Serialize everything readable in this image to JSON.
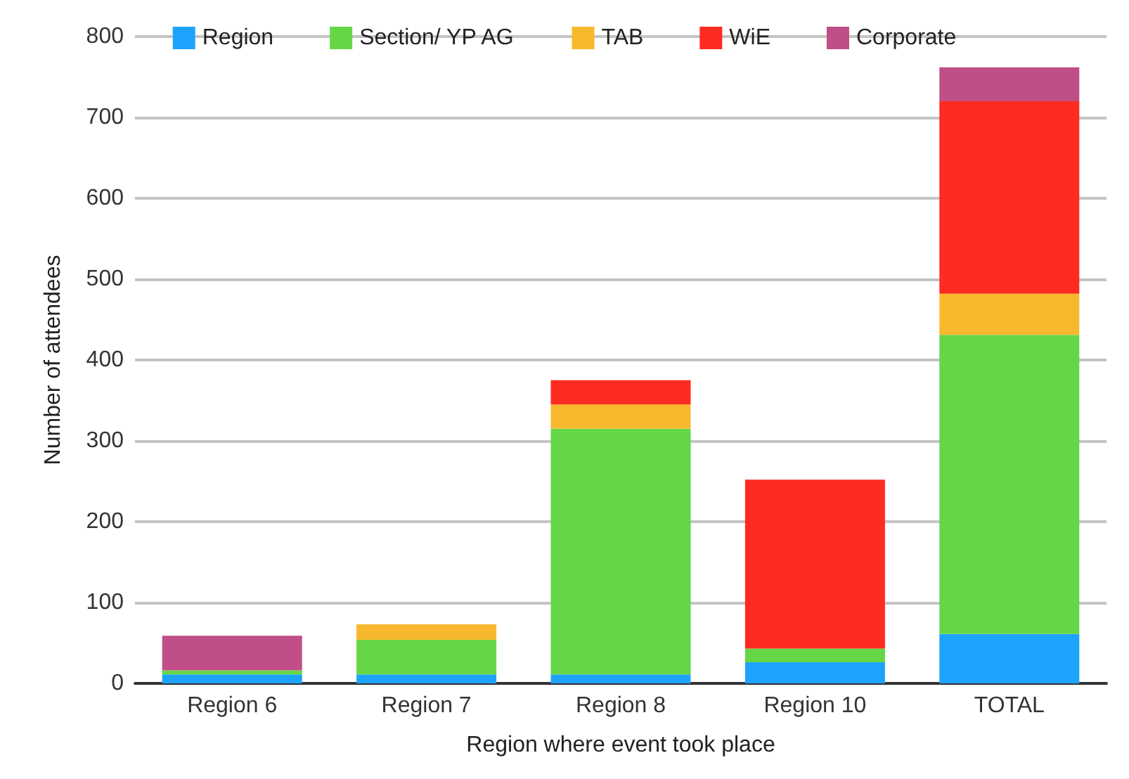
{
  "chart_data": {
    "type": "bar",
    "stacked": true,
    "xlabel": "Region where event took place",
    "ylabel": "Number of attendees",
    "categories": [
      "Region 6",
      "Region 7",
      "Region 8",
      "Region 10",
      "TOTAL"
    ],
    "series": [
      {
        "name": "Region",
        "color": "#1ea3fc",
        "values": [
          11,
          11,
          11,
          26,
          61
        ]
      },
      {
        "name": "Section/ YP AG",
        "color": "#65d746",
        "values": [
          5,
          43,
          304,
          17,
          370
        ]
      },
      {
        "name": "TAB",
        "color": "#f8b82e",
        "values": [
          0,
          19,
          30,
          0,
          51
        ]
      },
      {
        "name": "WiE",
        "color": "#fd2b21",
        "values": [
          0,
          0,
          30,
          209,
          238
        ]
      },
      {
        "name": "Corporate",
        "color": "#c04f87",
        "values": [
          43,
          0,
          0,
          0,
          42
        ]
      }
    ],
    "ylim": [
      0,
      800
    ],
    "yticks": [
      0,
      100,
      200,
      300,
      400,
      500,
      600,
      700,
      800
    ],
    "grid": "y",
    "legend": "top"
  }
}
